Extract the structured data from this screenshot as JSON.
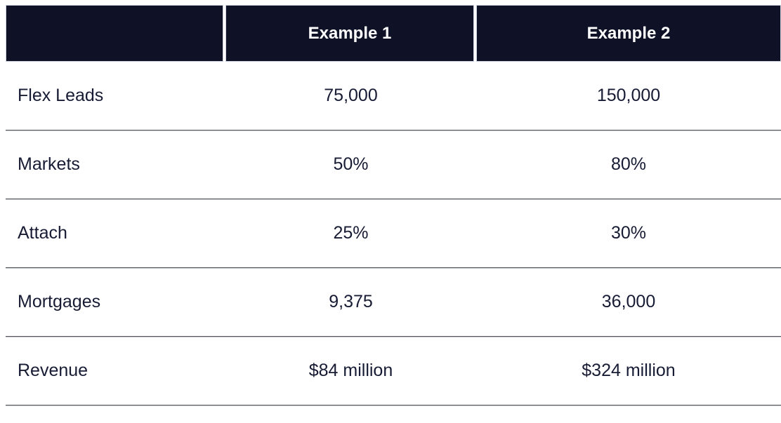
{
  "table": {
    "header": {
      "blank": "",
      "example1": "Example 1",
      "example2": "Example 2"
    },
    "rows": [
      {
        "label": "Flex Leads",
        "example1": "75,000",
        "example2": "150,000"
      },
      {
        "label": "Markets",
        "example1": "50%",
        "example2": "80%"
      },
      {
        "label": "Attach",
        "example1": "25%",
        "example2": "30%"
      },
      {
        "label": "Mortgages",
        "example1": "9,375",
        "example2": "36,000"
      },
      {
        "label": "Revenue",
        "example1": "$84 million",
        "example2": "$324 million"
      }
    ],
    "colors": {
      "header_bg": "#0f1226",
      "header_text": "#ffffff",
      "body_text": "#171b33",
      "divider": "#54565c",
      "header_border": "#ccd1dd"
    }
  }
}
